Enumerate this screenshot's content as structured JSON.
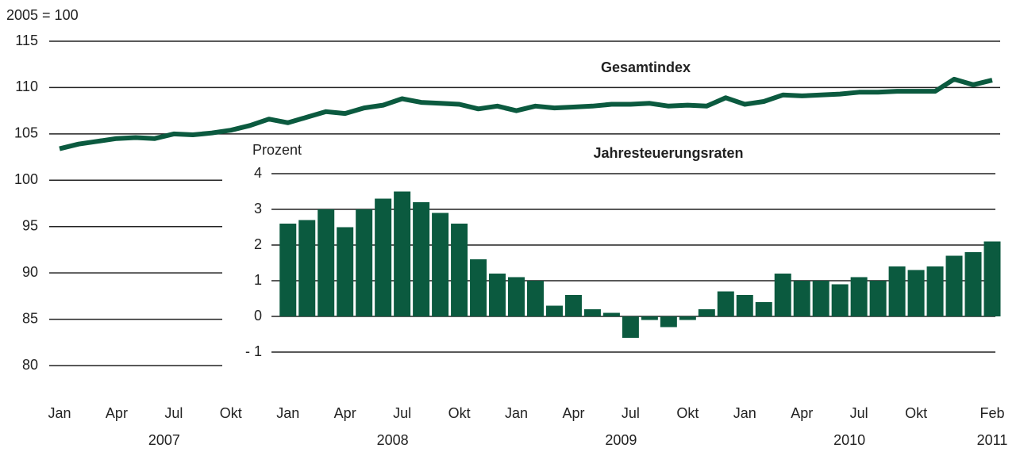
{
  "chart_data": [
    {
      "type": "line",
      "y_label": "2005 = 100",
      "annotation": "Gesamtindex",
      "categories": [
        "Jan",
        null,
        null,
        "Apr",
        null,
        null,
        "Jul",
        null,
        null,
        "Okt",
        null,
        null,
        "Jan",
        null,
        null,
        "Apr",
        null,
        null,
        "Jul",
        null,
        null,
        "Okt",
        null,
        null,
        "Jan",
        null,
        null,
        "Apr",
        null,
        null,
        "Jul",
        null,
        null,
        "Okt",
        null,
        null,
        "Jan",
        null,
        null,
        "Apr",
        null,
        null,
        "Jul",
        null,
        null,
        "Okt",
        null,
        null,
        null,
        "Feb"
      ],
      "years": [
        "2007",
        "2008",
        "2009",
        "2010",
        "2011"
      ],
      "values": [
        103.4,
        103.9,
        104.2,
        104.5,
        104.6,
        104.5,
        105.0,
        104.9,
        105.1,
        105.4,
        105.9,
        106.6,
        106.2,
        106.8,
        107.4,
        107.2,
        107.8,
        108.1,
        108.8,
        108.4,
        108.3,
        108.2,
        107.7,
        108.0,
        107.5,
        108.0,
        107.8,
        107.9,
        108.0,
        108.2,
        108.2,
        108.3,
        108.0,
        108.1,
        108.0,
        108.9,
        108.2,
        108.5,
        109.2,
        109.1,
        109.2,
        109.3,
        109.5,
        109.5,
        109.6,
        109.6,
        109.6,
        110.9,
        110.3,
        110.8
      ],
      "color": "#0b5a3f",
      "ylim": [
        80,
        115
      ],
      "yticks": [
        80,
        85,
        90,
        95,
        100,
        105,
        110,
        115
      ],
      "grid": true
    },
    {
      "type": "bar",
      "y_label": "Prozent",
      "title": "Jahresteuerungsraten",
      "values": [
        2.6,
        2.7,
        3.0,
        2.5,
        3.0,
        3.3,
        3.5,
        3.2,
        2.9,
        2.6,
        1.6,
        1.2,
        1.1,
        1.0,
        0.3,
        0.6,
        0.2,
        0.1,
        -0.6,
        -0.1,
        -0.3,
        -0.1,
        0.2,
        0.7,
        0.6,
        0.4,
        1.2,
        1.0,
        1.0,
        0.9,
        1.1,
        1.0,
        1.4,
        1.3,
        1.4,
        1.7,
        1.8,
        2.1
      ],
      "color": "#0b5a3f",
      "ylim": [
        -1,
        4
      ],
      "yticks": [
        {
          "value": -1,
          "label": "- 1"
        },
        0,
        1,
        2,
        3,
        4
      ],
      "grid": true
    }
  ]
}
